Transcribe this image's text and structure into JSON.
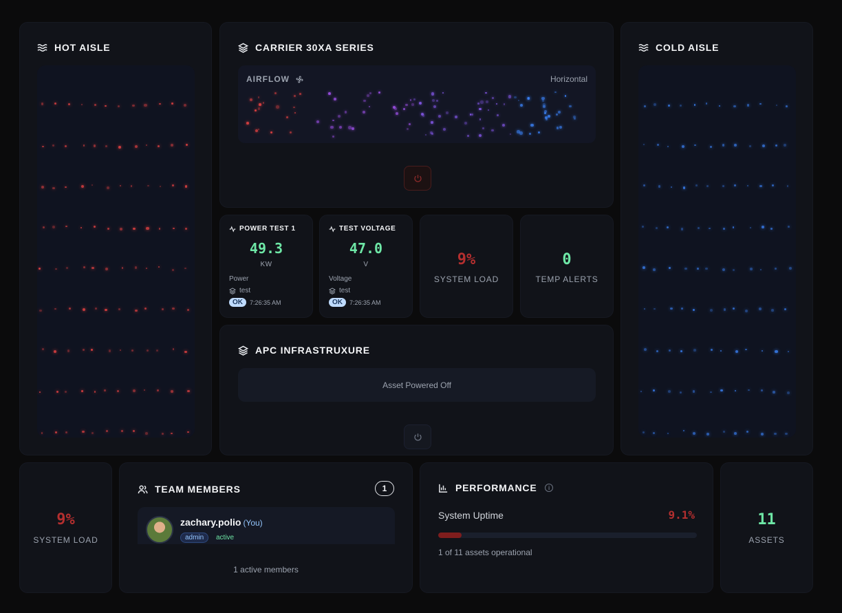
{
  "hot_aisle": {
    "title": "HOT AISLE",
    "icon": "waves-icon",
    "dot_color": "#ef4444"
  },
  "cold_aisle": {
    "title": "COLD AISLE",
    "icon": "waves-icon",
    "dot_color": "#3b82f6"
  },
  "carrier": {
    "title": "CARRIER 30XA SERIES",
    "icon": "layers-icon",
    "airflow_label": "AIRFLOW",
    "airflow_mode": "Horizontal",
    "power_state": "off",
    "power_color": "#7f1d1d"
  },
  "sensors": [
    {
      "title": "POWER TEST 1",
      "value": "49.3",
      "unit": "KW",
      "kind": "Power",
      "group": "test",
      "status": "OK",
      "time": "7:26:35 AM"
    },
    {
      "title": "TEST VOLTAGE",
      "value": "47.0",
      "unit": "V",
      "kind": "Voltage",
      "group": "test",
      "status": "OK",
      "time": "7:26:35 AM"
    }
  ],
  "system_load_mid": {
    "value": "9%",
    "label": "SYSTEM LOAD",
    "color": "#b42f2f"
  },
  "temp_alerts": {
    "value": "0",
    "label": "TEMP ALERTS",
    "color": "#6ee7a6"
  },
  "apc": {
    "title": "APC INFRASTRUXURE",
    "message": "Asset Powered Off"
  },
  "system_load_bottom": {
    "value": "9%",
    "label": "SYSTEM LOAD",
    "color": "#b42f2f"
  },
  "team": {
    "title": "TEAM MEMBERS",
    "count": "1",
    "members": [
      {
        "name": "zachary.polio",
        "you": "(You)",
        "role": "admin",
        "status": "active"
      }
    ],
    "footer": "1 active members"
  },
  "performance": {
    "title": "PERFORMANCE",
    "uptime_label": "System Uptime",
    "uptime_value": "9.1%",
    "uptime_fraction": 0.091,
    "subtitle": "1 of 11 assets operational"
  },
  "assets": {
    "value": "11",
    "label": "ASSETS",
    "color": "#6ee7a6"
  }
}
